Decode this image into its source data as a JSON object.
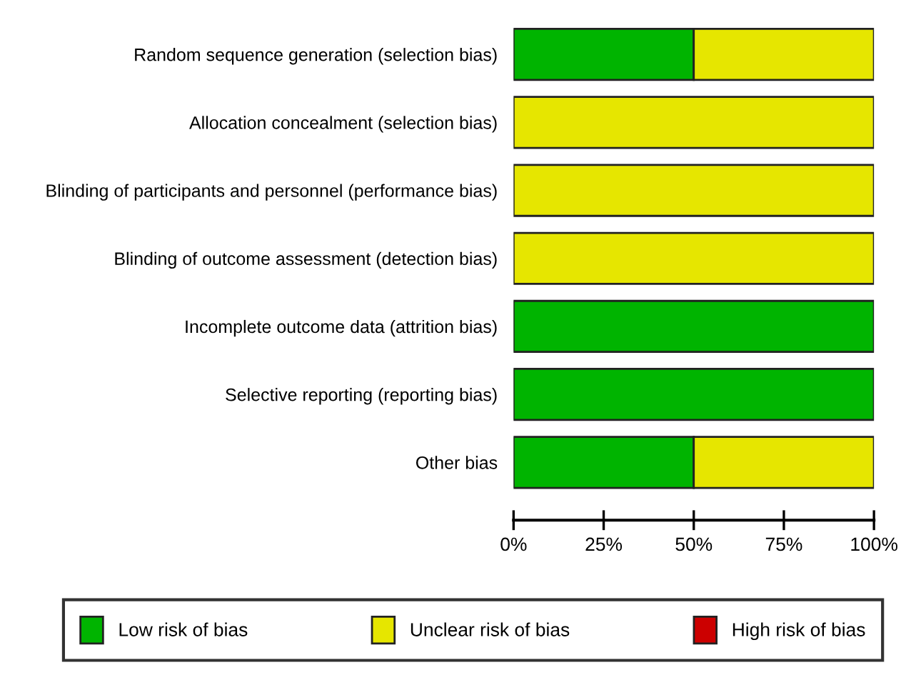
{
  "chart_data": {
    "type": "bar",
    "orientation": "horizontal",
    "stacked": true,
    "categories": [
      "Random sequence generation (selection bias)",
      "Allocation concealment (selection bias)",
      "Blinding of participants and personnel (performance bias)",
      "Blinding of outcome assessment (detection bias)",
      "Incomplete outcome data (attrition bias)",
      "Selective reporting (reporting bias)",
      "Other bias"
    ],
    "series": [
      {
        "name": "Low risk of bias",
        "color": "#00b400",
        "values": [
          50,
          0,
          0,
          0,
          100,
          100,
          50
        ]
      },
      {
        "name": "Unclear risk of bias",
        "color": "#e6e600",
        "values": [
          50,
          100,
          100,
          100,
          0,
          0,
          50
        ]
      },
      {
        "name": "High risk of bias",
        "color": "#cc0000",
        "values": [
          0,
          0,
          0,
          0,
          0,
          0,
          0
        ]
      }
    ],
    "xlim": [
      0,
      100
    ],
    "xticks": [
      {
        "value": 0,
        "label": "0%"
      },
      {
        "value": 25,
        "label": "25%"
      },
      {
        "value": 50,
        "label": "50%"
      },
      {
        "value": 75,
        "label": "75%"
      },
      {
        "value": 100,
        "label": "100%"
      }
    ],
    "legend": "bottom",
    "grid": false
  }
}
